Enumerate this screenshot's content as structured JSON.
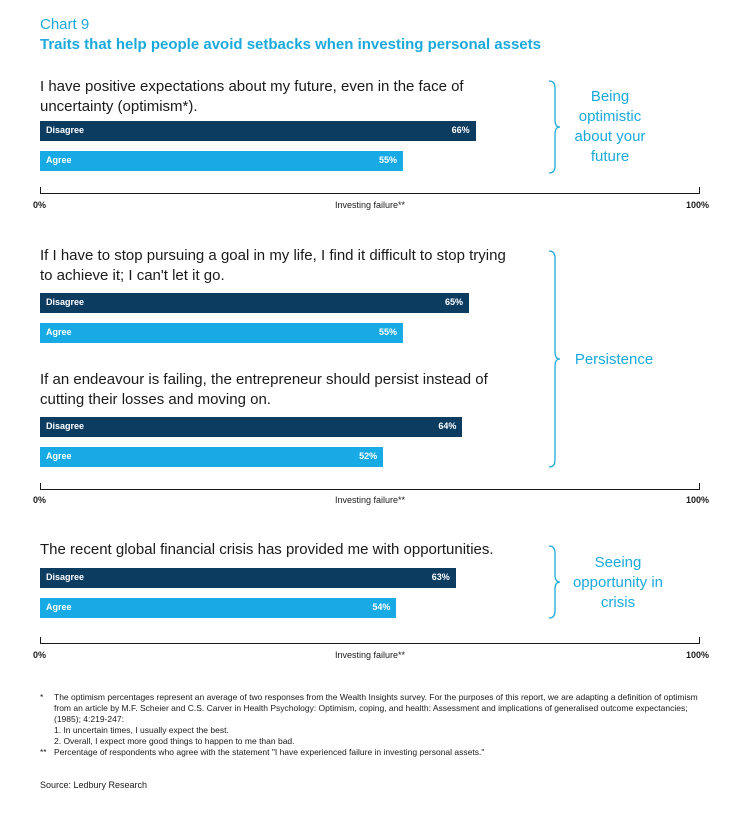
{
  "header": {
    "chart_number": "Chart 9",
    "title": "Traits that help people avoid setbacks when investing personal assets"
  },
  "chart_data": {
    "type": "bar",
    "orientation": "horizontal",
    "xlabel": "Investing failure**",
    "xlim": [
      0,
      100
    ],
    "x_ticks": [
      "0%",
      "100%"
    ],
    "groups": [
      {
        "trait": "Being optimistic about your future",
        "questions": [
          {
            "text": "I have positive expectations about my future, even in the face of uncertainty (optimism*).",
            "series": [
              {
                "name": "Disagree",
                "value": 66,
                "label": "66%",
                "color": "#0d3c61"
              },
              {
                "name": "Agree",
                "value": 55,
                "label": "55%",
                "color": "#18aae5"
              }
            ]
          }
        ]
      },
      {
        "trait": "Persistence",
        "questions": [
          {
            "text": "If I have to stop pursuing a goal in my life, I find it difficult to stop trying to achieve it; I can't let it go.",
            "series": [
              {
                "name": "Disagree",
                "value": 65,
                "label": "65%",
                "color": "#0d3c61"
              },
              {
                "name": "Agree",
                "value": 55,
                "label": "55%",
                "color": "#18aae5"
              }
            ]
          },
          {
            "text": "If an endeavour is failing, the entrepreneur should persist instead of cutting their losses and moving on.",
            "series": [
              {
                "name": "Disagree",
                "value": 64,
                "label": "64%",
                "color": "#0d3c61"
              },
              {
                "name": "Agree",
                "value": 52,
                "label": "52%",
                "color": "#18aae5"
              }
            ]
          }
        ]
      },
      {
        "trait": "Seeing opportunity in crisis",
        "questions": [
          {
            "text": "The recent global financial crisis has provided me with opportunities.",
            "series": [
              {
                "name": "Disagree",
                "value": 63,
                "label": "63%",
                "color": "#0d3c61"
              },
              {
                "name": "Agree",
                "value": 54,
                "label": "54%",
                "color": "#18aae5"
              }
            ]
          }
        ]
      }
    ]
  },
  "footnotes": {
    "note1_mark": "*",
    "note1": "The optimism percentages represent an average of two responses from the Wealth Insights survey. For the purposes of this report, we are adapting a definition of optimism from an article by M.F. Scheier and C.S. Carver in Health Psychology: Optimism, coping, and health: Assessment and implications of generalised outcome expectancies; (1985); 4:219-247:",
    "note1_item1": "1. In uncertain times, I usually expect the best.",
    "note1_item2": "2. Overall, I expect more good things to happen to me than bad.",
    "note2_mark": "**",
    "note2": "Percentage of respondents who agree with the statement \"I have experienced failure in investing personal assets.\""
  },
  "source": "Source: Ledbury Research",
  "colors": {
    "accent": "#1ba9dc",
    "disagree": "#0d3c61",
    "agree": "#18aae5"
  }
}
